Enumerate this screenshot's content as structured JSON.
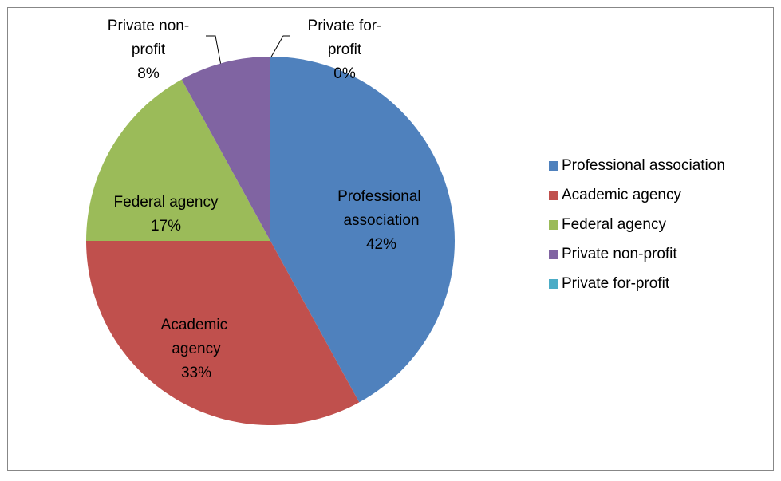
{
  "chart_data": {
    "type": "pie",
    "categories": [
      "Professional association",
      "Academic agency",
      "Federal agency",
      "Private non-profit",
      "Private for-profit"
    ],
    "values": [
      42,
      33,
      17,
      8,
      0
    ],
    "value_labels": [
      "42%",
      "33%",
      "17%",
      "8%",
      "0%"
    ],
    "colors": [
      "#4f81bd",
      "#c0504d",
      "#9bbb59",
      "#8064a2",
      "#4bacc6"
    ],
    "legend": "right"
  }
}
